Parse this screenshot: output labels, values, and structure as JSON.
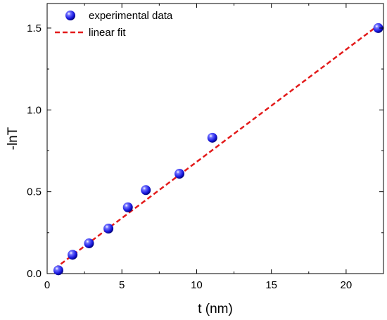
{
  "chart_data": {
    "type": "scatter",
    "title": "",
    "xlabel": "t (nm)",
    "ylabel": "-lnT",
    "xlim": [
      0,
      22.5
    ],
    "ylim": [
      0,
      1.65
    ],
    "xticks": [
      0,
      5,
      10,
      15,
      20
    ],
    "yticks": [
      0.0,
      0.5,
      1.0,
      1.5
    ],
    "xtick_labels": [
      "0",
      "5",
      "10",
      "15",
      "20"
    ],
    "ytick_labels": [
      "0.0",
      "0.5",
      "1.0",
      "1.5"
    ],
    "grid": false,
    "legend_position": "top-left",
    "series": [
      {
        "name": "experimental data",
        "kind": "scatter",
        "color": "#1a1aff",
        "x": [
          0.75,
          1.7,
          2.8,
          4.1,
          5.4,
          6.6,
          8.85,
          11.05,
          22.15
        ],
        "y": [
          0.02,
          0.115,
          0.185,
          0.275,
          0.405,
          0.51,
          0.61,
          0.83,
          1.5
        ]
      },
      {
        "name": "linear fit",
        "kind": "line",
        "style": "dashed",
        "color": "#e31a1a",
        "x": [
          0.5,
          22.2
        ],
        "y": [
          0.03,
          1.52
        ]
      }
    ]
  }
}
